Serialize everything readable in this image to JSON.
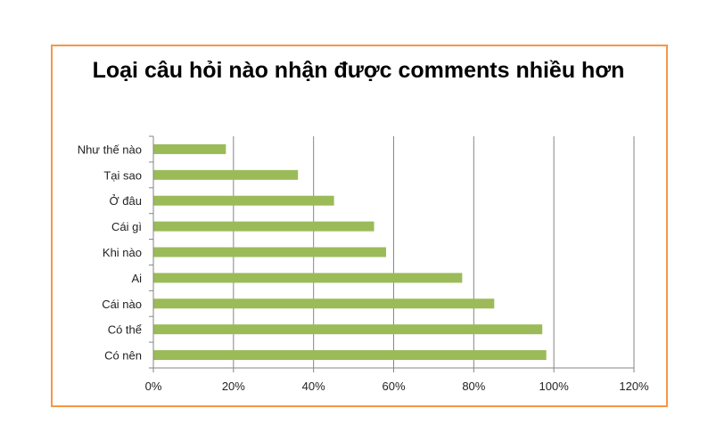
{
  "chart_data": {
    "type": "bar",
    "orientation": "horizontal",
    "title": "Loại câu hỏi nào nhận được comments nhiều hơn",
    "categories": [
      "Như thế nào",
      "Tại sao",
      "Ở đâu",
      "Cái gì",
      "Khi nào",
      "Ai",
      "Cái nào",
      "Có thể",
      "Có nên"
    ],
    "values": [
      18,
      36,
      45,
      55,
      58,
      77,
      85,
      97,
      98
    ],
    "unit": "%",
    "xlim": [
      0,
      120
    ],
    "xticks": [
      "0%",
      "20%",
      "40%",
      "60%",
      "80%",
      "100%",
      "120%"
    ],
    "grid": "vertical",
    "legend": "none",
    "colors": {
      "bar": "#9bbb59",
      "border": "#f79646",
      "grid": "#868686"
    }
  }
}
